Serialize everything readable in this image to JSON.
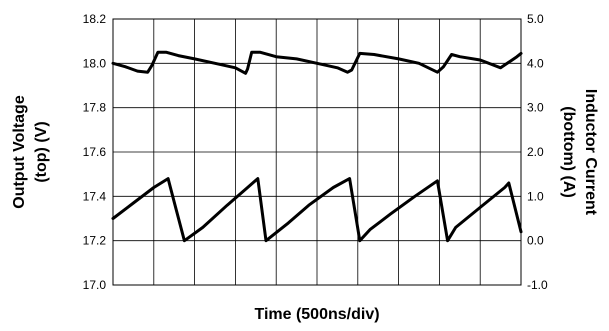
{
  "chart_data": {
    "type": "line",
    "xlabel": "Time (500ns/div)",
    "ylabel_left": [
      "Output Voltage",
      "(top) (V)"
    ],
    "ylabel_right": [
      "Inductor Current",
      "(bottom) (A)"
    ],
    "left_axis": {
      "ylim": [
        17.0,
        18.2
      ],
      "ticks": [
        "18.2",
        "18.0",
        "17.8",
        "17.6",
        "17.4",
        "17.2",
        "17.0"
      ],
      "tick_values": [
        18.2,
        18.0,
        17.8,
        17.6,
        17.4,
        17.2,
        17.0
      ]
    },
    "right_axis": {
      "ylim": [
        -1.0,
        5.0
      ],
      "ticks": [
        "5.0",
        "4.0",
        "3.0",
        "2.0",
        "1.0",
        "0.0",
        "-1.0"
      ],
      "tick_values": [
        5.0,
        4.0,
        3.0,
        2.0,
        1.0,
        0.0,
        -1.0
      ]
    },
    "xlim": [
      0,
      10
    ],
    "grid": true,
    "series": [
      {
        "axis": "left",
        "x": [
          0,
          0.3,
          0.6,
          0.85,
          0.95,
          1.1,
          1.3,
          1.6,
          2.0,
          2.5,
          3.0,
          3.25,
          3.3,
          3.4,
          3.6,
          4.0,
          4.5,
          5.0,
          5.5,
          5.75,
          5.85,
          6.05,
          6.4,
          7.0,
          7.5,
          7.95,
          8.1,
          8.3,
          8.5,
          9.0,
          9.5,
          9.9,
          10.0
        ],
        "values": [
          18.0,
          17.985,
          17.965,
          17.96,
          17.99,
          18.05,
          18.05,
          18.035,
          18.02,
          18.0,
          17.98,
          17.955,
          17.975,
          18.05,
          18.05,
          18.03,
          18.02,
          18.0,
          17.98,
          17.96,
          17.97,
          18.045,
          18.04,
          18.02,
          18.0,
          17.96,
          17.985,
          18.04,
          18.03,
          18.015,
          17.98,
          18.03,
          18.045
        ]
      },
      {
        "axis": "right",
        "x": [
          0,
          0.5,
          1.0,
          1.35,
          1.55,
          1.75,
          2.2,
          2.8,
          3.3,
          3.55,
          3.75,
          4.3,
          4.8,
          5.4,
          5.8,
          6.05,
          6.3,
          6.8,
          7.4,
          7.95,
          8.2,
          8.4,
          9.0,
          9.6,
          9.7,
          10.0
        ],
        "values": [
          0.5,
          0.85,
          1.2,
          1.4,
          0.7,
          0.0,
          0.3,
          0.8,
          1.2,
          1.4,
          0.0,
          0.4,
          0.8,
          1.2,
          1.4,
          0.0,
          0.25,
          0.6,
          1.0,
          1.35,
          0.0,
          0.3,
          0.75,
          1.2,
          1.3,
          0.2
        ]
      }
    ]
  }
}
